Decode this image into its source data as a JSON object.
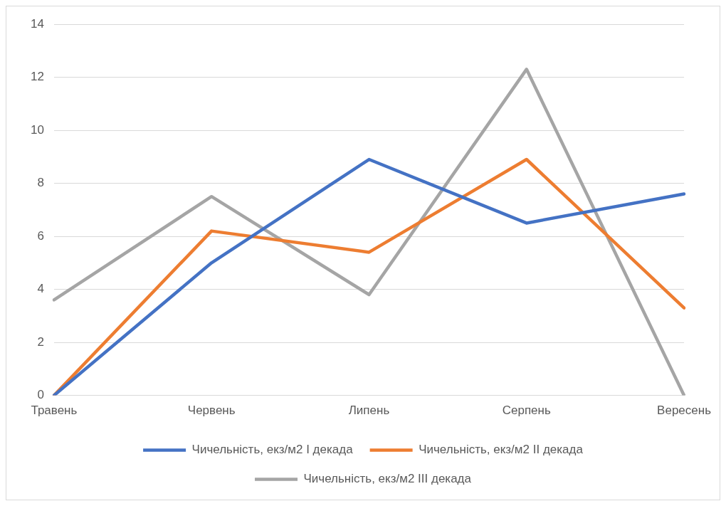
{
  "chart_data": {
    "type": "line",
    "categories": [
      "Травень",
      "Червень",
      "Липень",
      "Серпень",
      "Вересень"
    ],
    "series": [
      {
        "name": "Чичельність, екз/м2 I декада",
        "color": "#4472c4",
        "values": [
          0,
          5.0,
          8.9,
          6.5,
          7.6
        ]
      },
      {
        "name": "Чичельність, екз/м2 II декада",
        "color": "#ed7d31",
        "values": [
          0,
          6.2,
          5.4,
          8.9,
          3.3
        ]
      },
      {
        "name": "Чичельність, екз/м2 III декада",
        "color": "#a5a5a5",
        "values": [
          3.6,
          7.5,
          3.8,
          12.3,
          0
        ]
      }
    ],
    "ylim": [
      0,
      14
    ],
    "yticks": [
      0,
      2,
      4,
      6,
      8,
      10,
      12,
      14
    ],
    "grid": "y",
    "legend": "bottom",
    "marker": "none",
    "line_style": "solid"
  }
}
